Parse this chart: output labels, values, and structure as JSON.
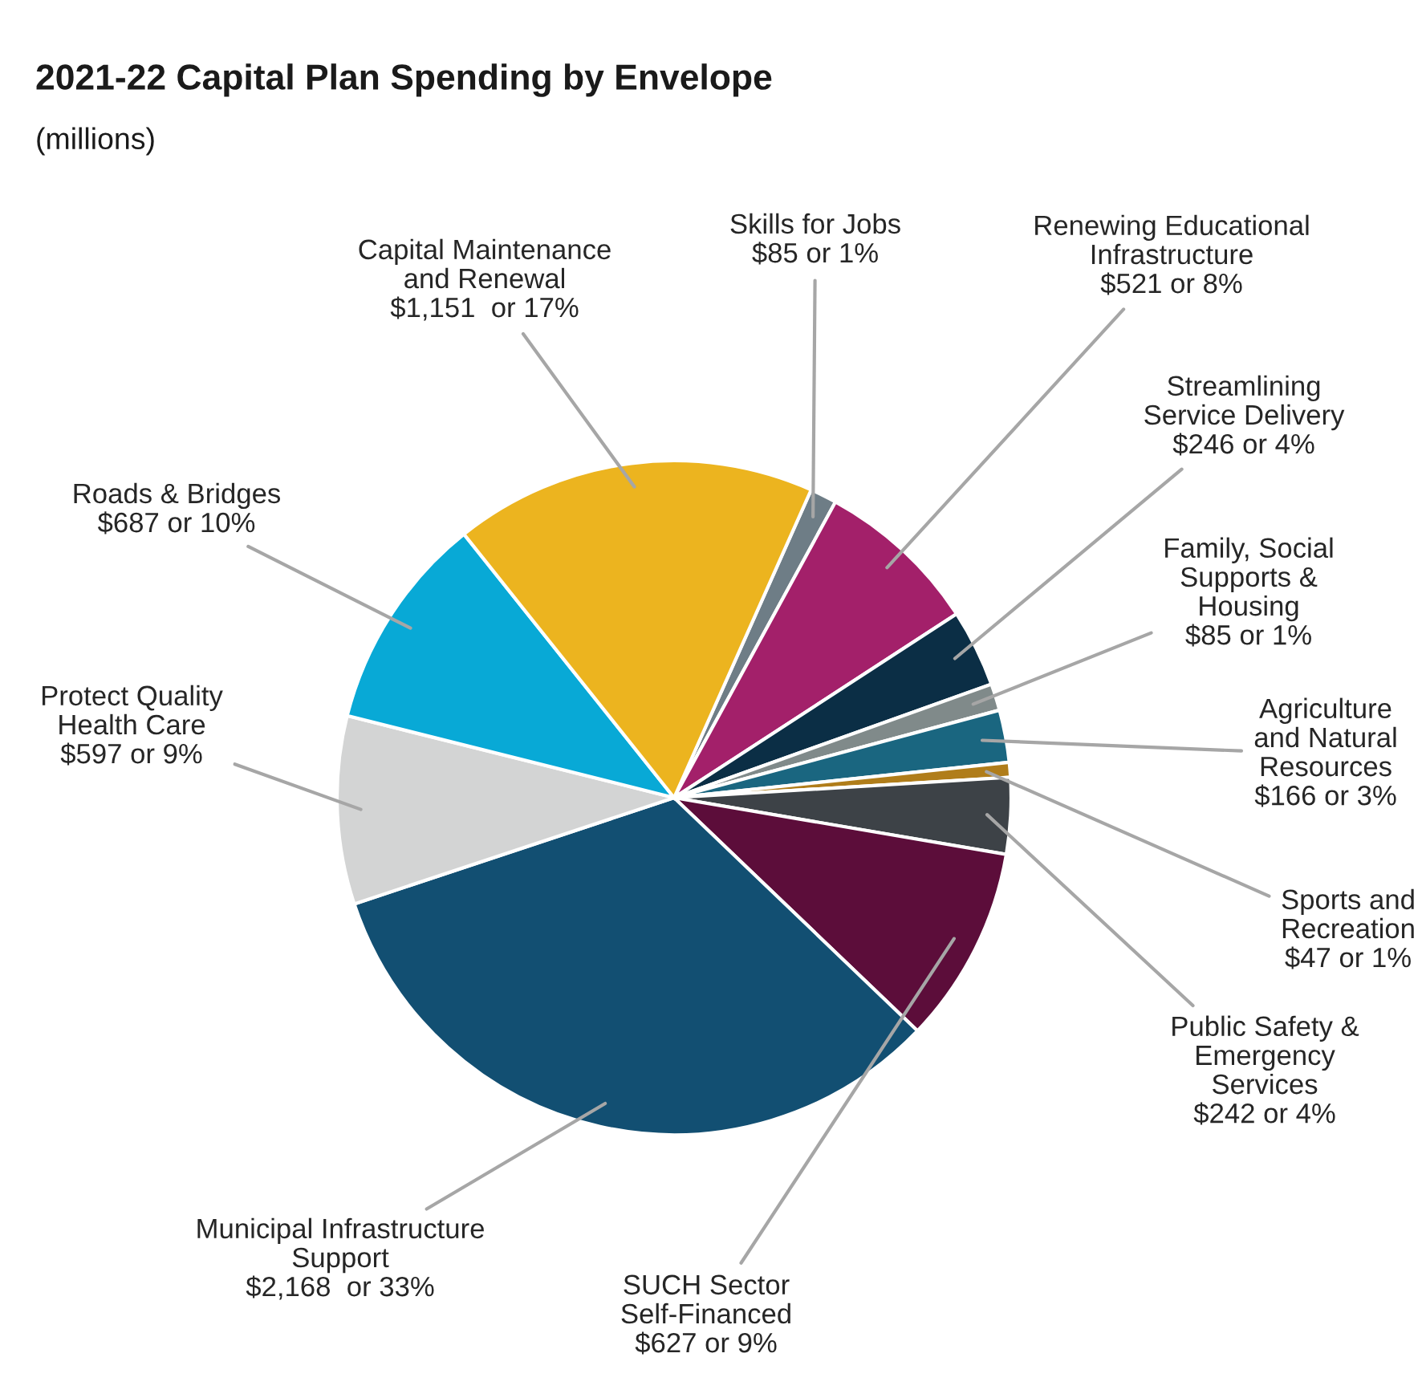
{
  "chart_data": {
    "type": "pie",
    "title": "2021-22 Capital Plan Spending by Envelope",
    "subtitle": "(millions)",
    "categories": [
      "Skills for Jobs",
      "Renewing Educational\nInfrastructure",
      "Streamlining\nService Delivery",
      "Family, Social\nSupports &\nHousing",
      "Agriculture\nand Natural\nResources",
      "Sports and\nRecreation",
      "Public Safety &\nEmergency\nServices",
      "SUCH Sector\nSelf-Financed",
      "Municipal Infrastructure\nSupport",
      "Protect Quality\nHealth Care",
      "Roads & Bridges",
      "Capital Maintenance\nand Renewal"
    ],
    "values": [
      85,
      521,
      246,
      85,
      166,
      47,
      242,
      627,
      2168,
      597,
      687,
      1151
    ],
    "value_labels": [
      "$85 or 1%",
      "$521 or 8%",
      "$246 or 4%",
      "$85 or 1%",
      "$166 or 3%",
      "$47 or 1%",
      "$242 or 4%",
      "$627 or 9%",
      "$2,168  or 33%",
      "$597 or 9%",
      "$687 or 10%",
      "$1,151  or 17%"
    ],
    "colors": [
      "#6e7d86",
      "#a3206a",
      "#0b2e45",
      "#808a8a",
      "#1a6680",
      "#b07d1a",
      "#3d4247",
      "#5c0d3a",
      "#124f72",
      "#d3d4d4",
      "#08a9d6",
      "#ecb41f"
    ],
    "legend": false
  }
}
